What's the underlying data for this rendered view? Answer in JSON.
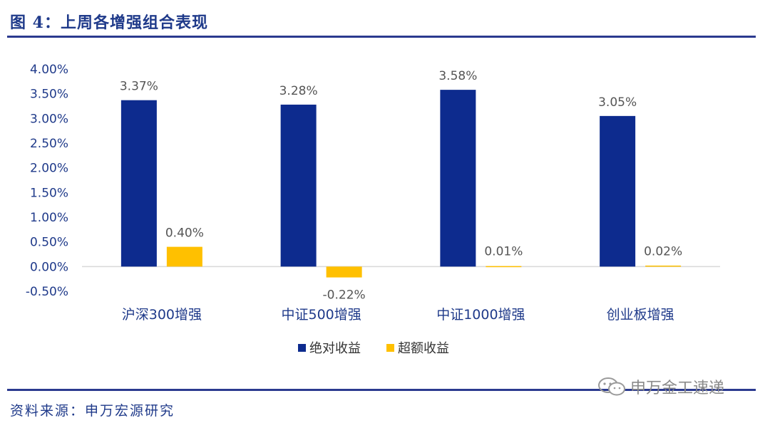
{
  "header": {
    "title": "图 4：上周各增强组合表现"
  },
  "footer": {
    "source": "资料来源：申万宏源研究",
    "watermark": "申万金工速递"
  },
  "colors": {
    "absolute": "#0D2B8E",
    "excess": "#FFC000",
    "axis_text": "#1F3A8A",
    "rule": "#2B3A8F"
  },
  "chart_data": {
    "type": "bar",
    "title": "",
    "xlabel": "",
    "ylabel": "",
    "categories": [
      "沪深300增强",
      "中证500增强",
      "中证1000增强",
      "创业板增强"
    ],
    "series": [
      {
        "name": "绝对收益",
        "values": [
          3.37,
          3.28,
          3.58,
          3.05
        ],
        "labels": [
          "3.37%",
          "3.28%",
          "3.58%",
          "3.05%"
        ]
      },
      {
        "name": "超额收益",
        "values": [
          0.4,
          -0.22,
          0.01,
          0.02
        ],
        "labels": [
          "0.40%",
          "-0.22%",
          "0.01%",
          "0.02%"
        ]
      }
    ],
    "ylim": [
      -0.5,
      4.0
    ],
    "yticks": [
      4.0,
      3.5,
      3.0,
      2.5,
      2.0,
      1.5,
      1.0,
      0.5,
      0.0,
      -0.5
    ],
    "ytick_labels": [
      "4.00%",
      "3.50%",
      "3.00%",
      "2.50%",
      "2.00%",
      "1.50%",
      "1.00%",
      "0.50%",
      "0.00%",
      "-0.50%"
    ],
    "grid": false,
    "legend": "bottom-center"
  }
}
